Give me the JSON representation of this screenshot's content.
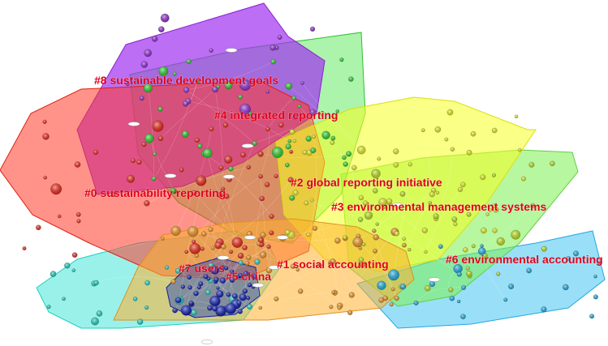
{
  "clusters": [
    {
      "id": "c0",
      "label": "#0 sustainability reporting",
      "color": "#ff2a1a"
    },
    {
      "id": "c1",
      "label": "#1 social accounting",
      "color": "#ffa020"
    },
    {
      "id": "c2",
      "label": "#2 global reporting initiative",
      "color": "#f5ff20"
    },
    {
      "id": "c3",
      "label": "#3 environmental management systems",
      "color": "#c8f020"
    },
    {
      "id": "c4",
      "label": "#4 integrated reporting",
      "color": "#30e030"
    },
    {
      "id": "c5",
      "label": "#5 china",
      "color": "#20e0d0"
    },
    {
      "id": "c6",
      "label": "#6 environmental accounting",
      "color": "#20b8f0"
    },
    {
      "id": "c7",
      "label": "#7 users",
      "color": "#1020c0"
    },
    {
      "id": "c8",
      "label": "#8 sustainable development goals",
      "color": "#9a30e0"
    }
  ],
  "colors": {
    "label": "#e0001b",
    "background": "#ffffff"
  }
}
